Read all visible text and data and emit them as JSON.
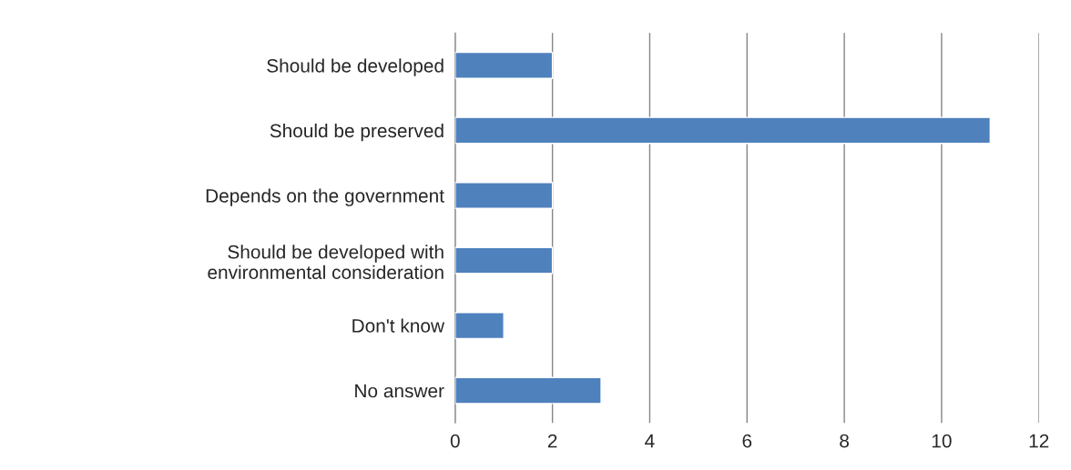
{
  "chart_data": {
    "type": "bar",
    "orientation": "horizontal",
    "categories": [
      "Should be developed",
      "Should be preserved",
      "Depends on the government",
      "Should be developed with environmental consideration",
      "Don't know",
      "No answer"
    ],
    "values": [
      2,
      11,
      2,
      2,
      1,
      3
    ],
    "color": "#4f81bd",
    "xlim": [
      0,
      12
    ],
    "xticks": [
      0,
      2,
      4,
      6,
      8,
      10,
      12
    ],
    "grid": "x"
  }
}
